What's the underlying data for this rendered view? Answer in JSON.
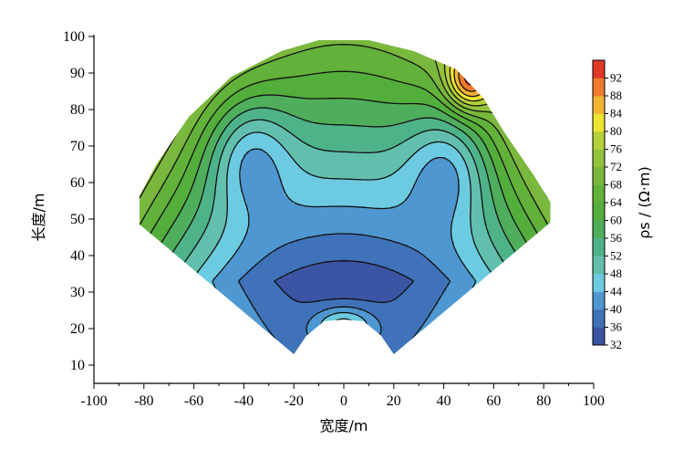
{
  "chart_data": {
    "type": "heatmap",
    "title": "",
    "xlabel": "宽度/m",
    "ylabel": "长度/m",
    "colorbar_label": "ρs / (Ω·m)",
    "xlim": [
      -100,
      100
    ],
    "ylim": [
      5,
      100
    ],
    "xticks": [
      -100,
      -80,
      -60,
      -40,
      -20,
      0,
      20,
      40,
      60,
      80,
      100
    ],
    "yticks": [
      10,
      20,
      30,
      40,
      50,
      60,
      70,
      80,
      90,
      100
    ],
    "xtick_labels": [
      "-100",
      "-80",
      "-60",
      "-40",
      "-20",
      "0",
      "20",
      "40",
      "60",
      "80",
      "100"
    ],
    "ytick_labels": [
      "10",
      "20",
      "30",
      "40",
      "50",
      "60",
      "70",
      "80",
      "90",
      "100"
    ],
    "colorbar_levels": [
      "32",
      "36",
      "40",
      "44",
      "48",
      "52",
      "56",
      "60",
      "64",
      "68",
      "72",
      "76",
      "80",
      "84",
      "88",
      "92"
    ],
    "levels": [
      32,
      36,
      40,
      44,
      48,
      52,
      56,
      60,
      64,
      68,
      72,
      76,
      80,
      84,
      88,
      92,
      96
    ],
    "colors": [
      "#3b55a4",
      "#3f72b8",
      "#4f97d1",
      "#6ccbe0",
      "#62bfad",
      "#4fb38a",
      "#4fae5c",
      "#54ae3c",
      "#62b13a",
      "#79b83c",
      "#93c23d",
      "#b4d03a",
      "#ece52f",
      "#f2b533",
      "#ee7a2d",
      "#e03a27"
    ],
    "contour_step": 4,
    "fan_region": {
      "apex": [
        0,
        5
      ],
      "left_edge": [
        -86,
        51
      ],
      "right_edge": [
        86,
        51
      ],
      "top": [
        0,
        99
      ],
      "inner_notch_bottom": [
        0,
        22
      ]
    },
    "field_features": [
      {
        "feature": "low_center",
        "x": -2,
        "y": 33,
        "value": 32
      },
      {
        "feature": "high_top_right",
        "x": 47,
        "y": 88,
        "value": 90
      },
      {
        "feature": "high_far_left",
        "x": -85,
        "y": 51,
        "value": 80
      },
      {
        "feature": "high_far_right",
        "x": 86,
        "y": 51,
        "value": 80
      }
    ]
  }
}
